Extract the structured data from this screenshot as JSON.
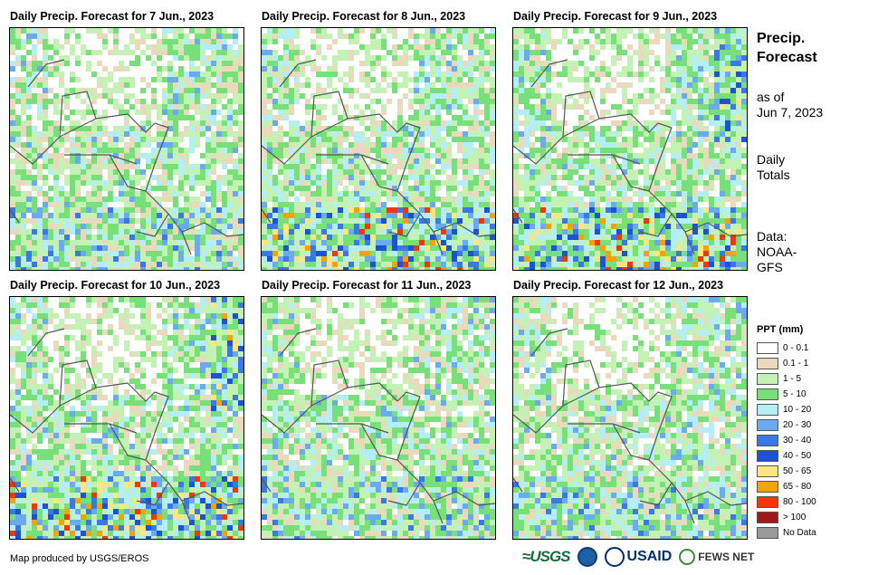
{
  "panels": [
    {
      "title": "Daily Precip. Forecast for 7 Jun., 2023"
    },
    {
      "title": "Daily Precip. Forecast for 8 Jun., 2023"
    },
    {
      "title": "Daily Precip. Forecast for 9 Jun., 2023"
    },
    {
      "title": "Daily Precip. Forecast for 10 Jun., 2023"
    },
    {
      "title": "Daily Precip. Forecast for 11 Jun., 2023"
    },
    {
      "title": "Daily Precip. Forecast for 12 Jun., 2023"
    }
  ],
  "sidebar": {
    "title_line1": "Precip.",
    "title_line2": "Forecast",
    "asof_line1": "as of",
    "asof_line2": "Jun 7, 2023",
    "totals_line1": "Daily",
    "totals_line2": "Totals",
    "data_line1": "Data:",
    "data_line2": "NOAA-",
    "data_line3": "GFS"
  },
  "legend": {
    "title": "PPT (mm)",
    "items": [
      {
        "label": "0 - 0.1",
        "color": "#ffffff"
      },
      {
        "label": "0.1 - 1",
        "color": "#ead9bd"
      },
      {
        "label": "1 - 5",
        "color": "#c4f2b4"
      },
      {
        "label": "5 - 10",
        "color": "#78e078"
      },
      {
        "label": "10 - 20",
        "color": "#b4eef8"
      },
      {
        "label": "20 - 30",
        "color": "#6aaaf0"
      },
      {
        "label": "30 - 40",
        "color": "#3a78e8"
      },
      {
        "label": "40 - 50",
        "color": "#1c52d8"
      },
      {
        "label": "50 - 65",
        "color": "#fde680"
      },
      {
        "label": "65 - 80",
        "color": "#f7a200"
      },
      {
        "label": "80 - 100",
        "color": "#f03800"
      },
      {
        "label": "> 100",
        "color": "#a01818"
      },
      {
        "label": "No Data",
        "color": "#9a9a9a"
      }
    ]
  },
  "footer": {
    "credit": "Map produced by USGS/EROS",
    "usgs": "≈USGS",
    "usaid": "USAID",
    "fews": "FEWS NET"
  }
}
